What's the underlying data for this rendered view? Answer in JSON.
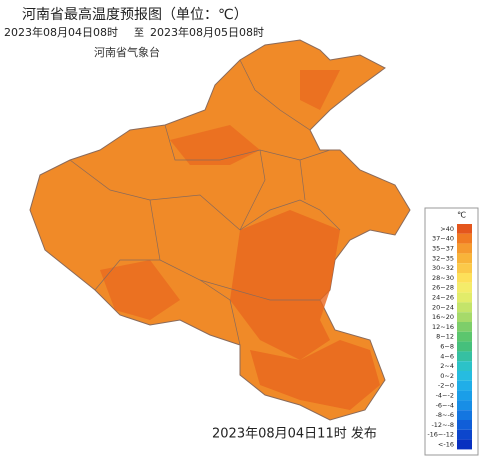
{
  "header": {
    "title": "河南省最高温度预报图（单位：℃）",
    "start": "2023年08月04日08时",
    "to": "至",
    "end": "2023年08月05日08时",
    "agency": "河南省气象台"
  },
  "legend": {
    "unit": "℃",
    "items": [
      {
        "label": ">40",
        "color": "#e4561d"
      },
      {
        "label": "37~40",
        "color": "#f07b23"
      },
      {
        "label": "35~37",
        "color": "#f59a2f"
      },
      {
        "label": "32~35",
        "color": "#f8b43a"
      },
      {
        "label": "30~32",
        "color": "#fbc94a"
      },
      {
        "label": "28~30",
        "color": "#fde05a"
      },
      {
        "label": "26~28",
        "color": "#f4ec6a"
      },
      {
        "label": "24~26",
        "color": "#e2ec6a"
      },
      {
        "label": "20~24",
        "color": "#c4e46a"
      },
      {
        "label": "16~20",
        "color": "#a6da6a"
      },
      {
        "label": "12~16",
        "color": "#7ece6a"
      },
      {
        "label": "8~12",
        "color": "#5cc66e"
      },
      {
        "label": "6~8",
        "color": "#46c07c"
      },
      {
        "label": "4~6",
        "color": "#36c0a2"
      },
      {
        "label": "2~4",
        "color": "#2cc2c8"
      },
      {
        "label": "0~2",
        "color": "#26bce0"
      },
      {
        "label": "-2~0",
        "color": "#20aee8"
      },
      {
        "label": "-4~-2",
        "color": "#1a9ee8"
      },
      {
        "label": "-6~-4",
        "color": "#188ee6"
      },
      {
        "label": "-8~-6",
        "color": "#1476e0"
      },
      {
        "label": "-12~-8",
        "color": "#105ed8"
      },
      {
        "label": "-16~-12",
        "color": "#0c46cc"
      },
      {
        "label": "<-16",
        "color": "#0830c0"
      }
    ]
  },
  "footer": {
    "issued": "2023年08月04日11时 发布"
  }
}
